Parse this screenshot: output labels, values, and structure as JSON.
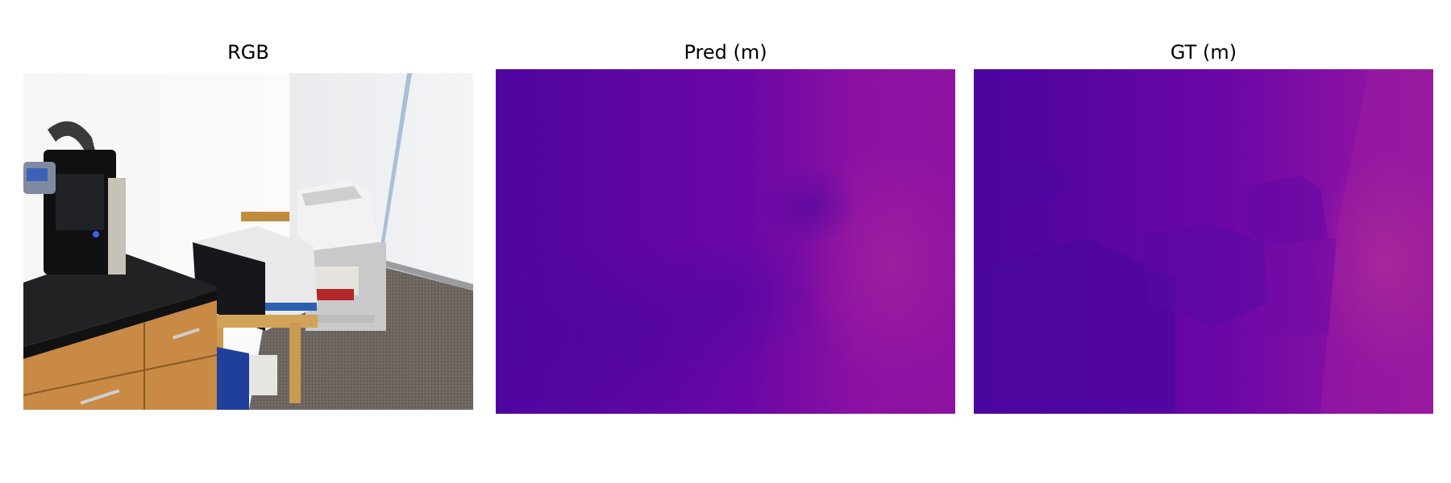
{
  "panels": [
    {
      "title": "RGB"
    },
    {
      "title": "Pred (m)"
    },
    {
      "title": "GT (m)"
    }
  ]
}
